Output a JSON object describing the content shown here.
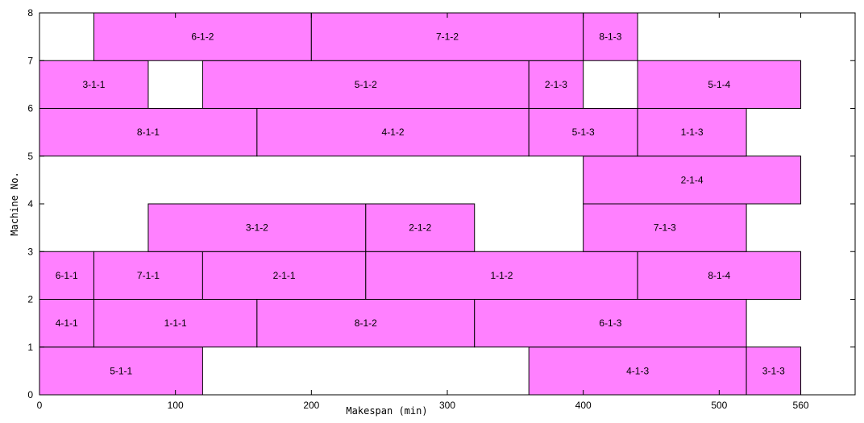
{
  "chart_data": {
    "type": "gantt",
    "xlabel": "Makespan (min)",
    "ylabel": "Machine No.",
    "xlim": [
      0,
      600
    ],
    "ylim": [
      0,
      8
    ],
    "x_ticks": [
      0,
      100,
      200,
      300,
      400,
      500,
      560
    ],
    "y_ticks": [
      0,
      1,
      2,
      3,
      4,
      5,
      6,
      7,
      8
    ],
    "grid": false,
    "bar_color": "#ff80ff",
    "bar_edge_color": "#000000",
    "tasks": [
      {
        "label": "5-1-1",
        "row": 0,
        "start": 0,
        "end": 120
      },
      {
        "label": "4-1-3",
        "row": 0,
        "start": 360,
        "end": 520
      },
      {
        "label": "3-1-3",
        "row": 0,
        "start": 520,
        "end": 560
      },
      {
        "label": "4-1-1",
        "row": 1,
        "start": 0,
        "end": 40
      },
      {
        "label": "1-1-1",
        "row": 1,
        "start": 40,
        "end": 160
      },
      {
        "label": "8-1-2",
        "row": 1,
        "start": 160,
        "end": 320
      },
      {
        "label": "6-1-3",
        "row": 1,
        "start": 320,
        "end": 520
      },
      {
        "label": "6-1-1",
        "row": 2,
        "start": 0,
        "end": 40
      },
      {
        "label": "7-1-1",
        "row": 2,
        "start": 40,
        "end": 120
      },
      {
        "label": "2-1-1",
        "row": 2,
        "start": 120,
        "end": 240
      },
      {
        "label": "1-1-2",
        "row": 2,
        "start": 240,
        "end": 440
      },
      {
        "label": "8-1-4",
        "row": 2,
        "start": 440,
        "end": 560
      },
      {
        "label": "3-1-2",
        "row": 3,
        "start": 80,
        "end": 240
      },
      {
        "label": "2-1-2",
        "row": 3,
        "start": 240,
        "end": 320
      },
      {
        "label": "7-1-3",
        "row": 3,
        "start": 400,
        "end": 520
      },
      {
        "label": "2-1-4",
        "row": 4,
        "start": 400,
        "end": 560
      },
      {
        "label": "8-1-1",
        "row": 5,
        "start": 0,
        "end": 160
      },
      {
        "label": "4-1-2",
        "row": 5,
        "start": 160,
        "end": 360
      },
      {
        "label": "5-1-3",
        "row": 5,
        "start": 360,
        "end": 440
      },
      {
        "label": "1-1-3",
        "row": 5,
        "start": 440,
        "end": 520
      },
      {
        "label": "3-1-1",
        "row": 6,
        "start": 0,
        "end": 80
      },
      {
        "label": "5-1-2",
        "row": 6,
        "start": 120,
        "end": 360
      },
      {
        "label": "2-1-3",
        "row": 6,
        "start": 360,
        "end": 400
      },
      {
        "label": "5-1-4",
        "row": 6,
        "start": 440,
        "end": 560
      },
      {
        "label": "6-1-2",
        "row": 7,
        "start": 40,
        "end": 200
      },
      {
        "label": "7-1-2",
        "row": 7,
        "start": 200,
        "end": 400
      },
      {
        "label": "8-1-3",
        "row": 7,
        "start": 400,
        "end": 440
      }
    ]
  }
}
